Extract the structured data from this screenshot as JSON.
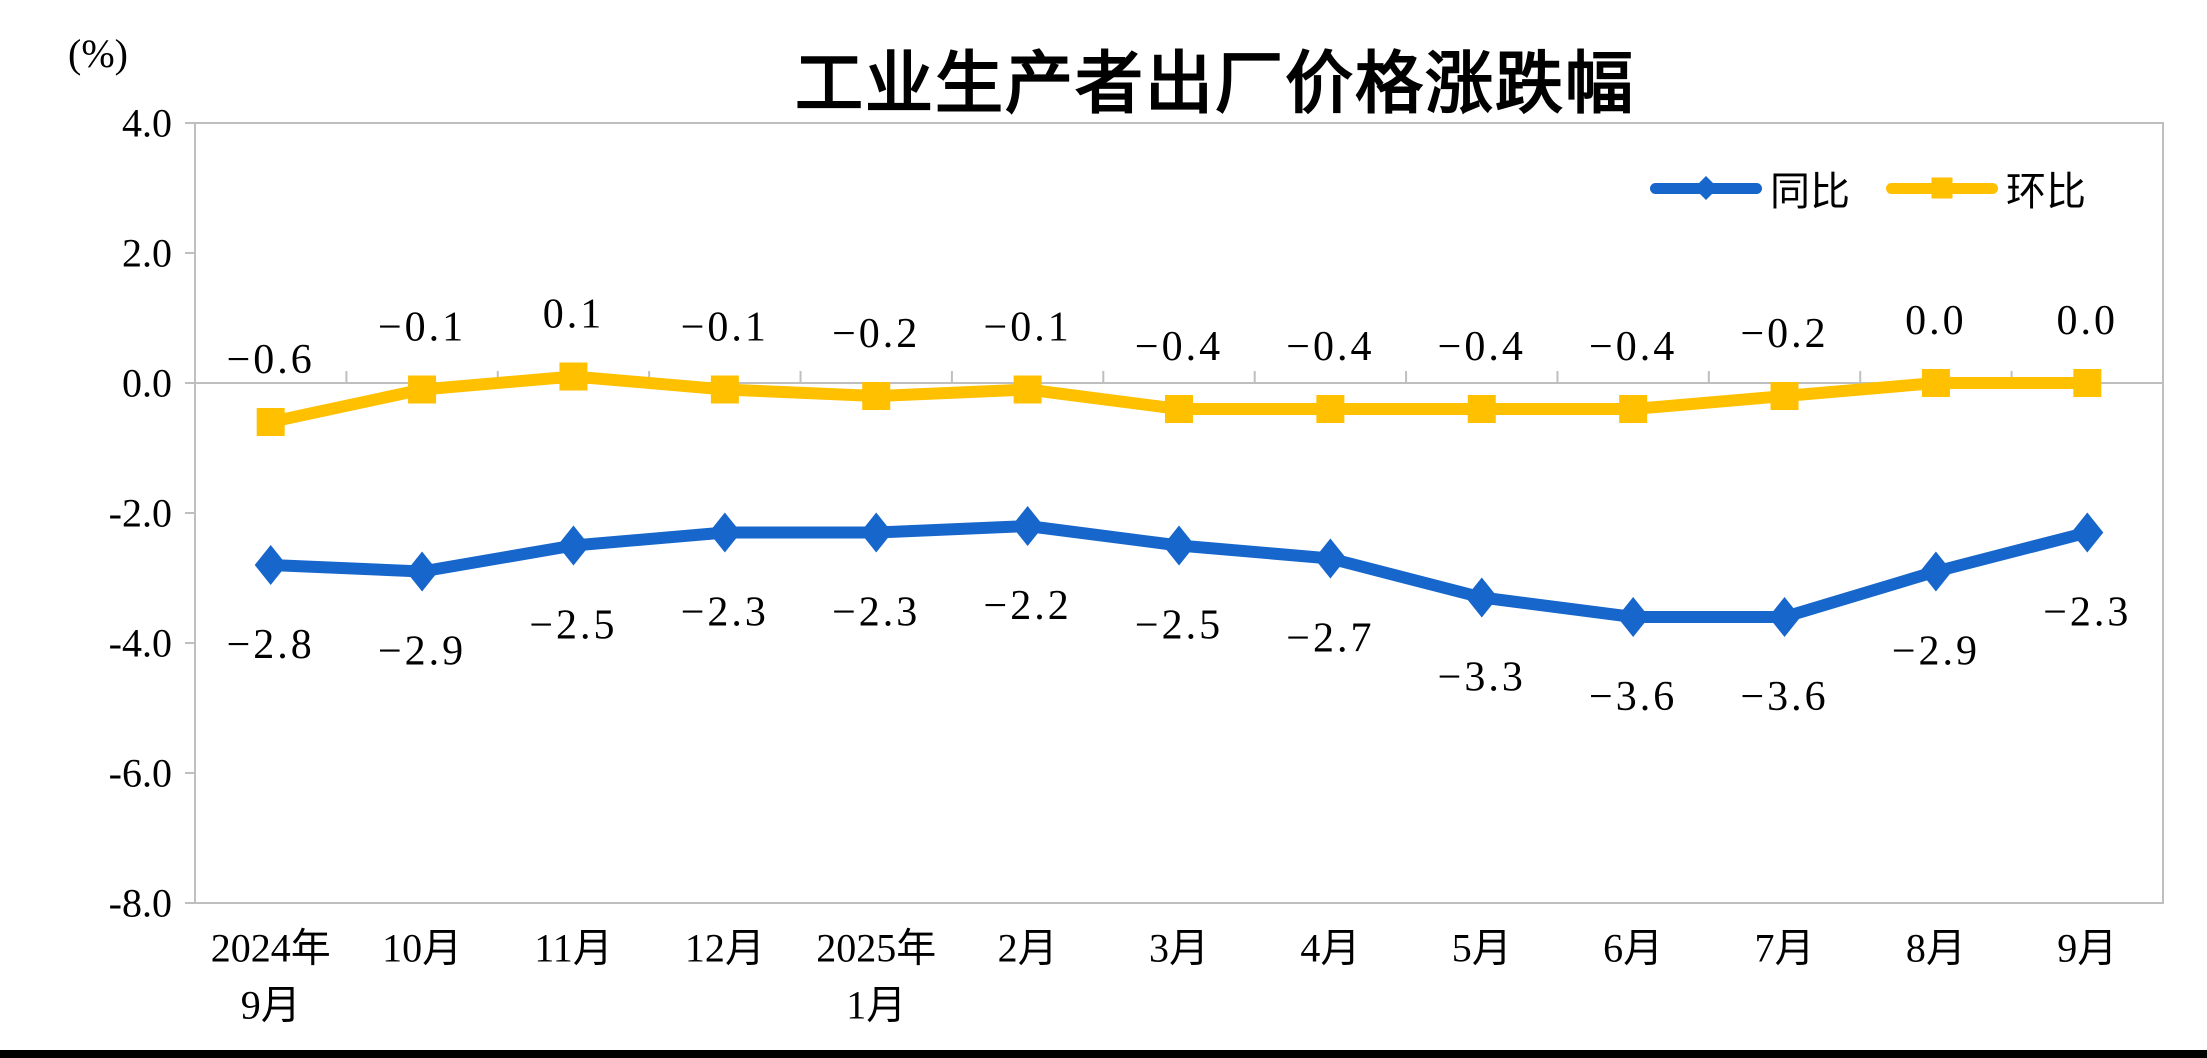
{
  "chart_data": {
    "type": "line",
    "title": "工业生产者出厂价格涨跌幅",
    "unit_label": "(%)",
    "ylim": [
      -8.0,
      4.0
    ],
    "ytick_step": 2.0,
    "ytick_labels": [
      "4.0",
      "2.0",
      "0.0",
      "-2.0",
      "-4.0",
      "-6.0",
      "-8.0"
    ],
    "ytick_values": [
      4,
      2,
      0,
      -2,
      -4,
      -6,
      -8
    ],
    "grid": false,
    "legend_position": "top-right-inside",
    "axis_color": "#BFBFBF",
    "categories": [
      [
        "2024年",
        "9月"
      ],
      [
        "10月"
      ],
      [
        "11月"
      ],
      [
        "12月"
      ],
      [
        "2025年",
        "1月"
      ],
      [
        "2月"
      ],
      [
        "3月"
      ],
      [
        "4月"
      ],
      [
        "5月"
      ],
      [
        "6月"
      ],
      [
        "7月"
      ],
      [
        "8月"
      ],
      [
        "9月"
      ]
    ],
    "series": [
      {
        "name": "同比",
        "color": "#1766CB",
        "marker": "diamond",
        "label_position": "below",
        "values": [
          -2.8,
          -2.9,
          -2.5,
          -2.3,
          -2.3,
          -2.2,
          -2.5,
          -2.7,
          -3.3,
          -3.6,
          -3.6,
          -2.9,
          -2.3
        ],
        "labels": [
          "−2.8",
          "−2.9",
          "−2.5",
          "−2.3",
          "−2.3",
          "−2.2",
          "−2.5",
          "−2.7",
          "−3.3",
          "−3.6",
          "−3.6",
          "−2.9",
          "−2.3"
        ]
      },
      {
        "name": "环比",
        "color": "#FFC000",
        "marker": "square",
        "label_position": "above",
        "values": [
          -0.6,
          -0.1,
          0.1,
          -0.1,
          -0.2,
          -0.1,
          -0.4,
          -0.4,
          -0.4,
          -0.4,
          -0.2,
          0.0,
          0.0
        ],
        "labels": [
          "−0.6",
          "−0.1",
          "0.1",
          "−0.1",
          "−0.2",
          "−0.1",
          "−0.4",
          "−0.4",
          "−0.4",
          "−0.4",
          "−0.2",
          "0.0",
          "0.0"
        ]
      }
    ]
  }
}
